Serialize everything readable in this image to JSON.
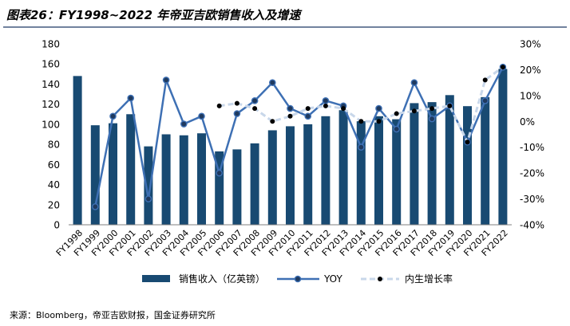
{
  "title": "图表26：FY1998~2022 年帝亚吉欧销售收入及增速",
  "source": "来源：Bloomberg，帝亚吉欧财报，国金证券研究所",
  "colors": {
    "title": "#1f3864",
    "bar": "#184a72",
    "yoy": "#3e70b4",
    "yoy_marker": "#1f3a5f",
    "organic": "#c8d7ea",
    "organic_marker": "#000000",
    "axis": "#7f7f7f"
  },
  "chart_data": {
    "type": "bar",
    "categories": [
      "FY1998",
      "FY1999",
      "FY2000",
      "FY2001",
      "FY2002",
      "FY2003",
      "FY2004",
      "FY2005",
      "FY2006",
      "FY2007",
      "FY2008",
      "FY2009",
      "FY2010",
      "FY2011",
      "FY2012",
      "FY2013",
      "FY2014",
      "FY2015",
      "FY2016",
      "FY2017",
      "FY2018",
      "FY2019",
      "FY2020",
      "FY2021",
      "FY2022"
    ],
    "series": [
      {
        "name": "销售收入（亿英镑）",
        "type": "bar",
        "axis": "left",
        "values": [
          148,
          99,
          101,
          110,
          78,
          90,
          89,
          91,
          73,
          75,
          81,
          94,
          98,
          100,
          108,
          114,
          103,
          108,
          105,
          121,
          122,
          129,
          118,
          127,
          155
        ]
      },
      {
        "name": "YOY",
        "type": "line",
        "axis": "right",
        "values": [
          null,
          -33,
          2,
          9,
          -30,
          16,
          -1,
          2,
          -20,
          3,
          8,
          15,
          5,
          2,
          8,
          6,
          -10,
          5,
          -3,
          15,
          1,
          6,
          -8,
          8,
          21
        ]
      },
      {
        "name": "内生增长率",
        "type": "line",
        "axis": "right",
        "style": "dashed",
        "values": [
          null,
          null,
          null,
          null,
          null,
          null,
          null,
          null,
          6,
          7,
          5,
          0,
          2,
          5,
          6,
          5,
          0,
          0,
          3,
          4,
          5,
          6,
          -8,
          16,
          21
        ]
      }
    ],
    "left_axis": {
      "ylim": [
        0,
        180
      ],
      "tick_labels": [
        "0",
        "20",
        "40",
        "60",
        "80",
        "100",
        "120",
        "140",
        "160",
        "180"
      ]
    },
    "right_axis": {
      "ylim": [
        -40,
        30
      ],
      "tick_labels": [
        "-40%",
        "-30%",
        "-20%",
        "-10%",
        "0%",
        "10%",
        "20%",
        "30%"
      ]
    },
    "legend": "bottom",
    "grid": false
  }
}
